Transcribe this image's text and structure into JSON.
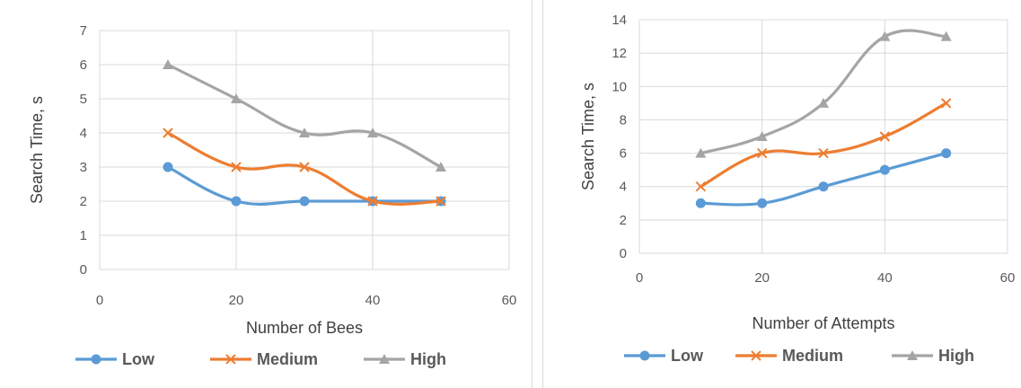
{
  "chart_data": [
    {
      "type": "line",
      "title": "",
      "xlabel": "Number of Bees",
      "ylabel": "Search Time, s",
      "xlim": [
        0,
        60
      ],
      "ylim": [
        0,
        7
      ],
      "xticks": [
        0,
        20,
        40,
        60
      ],
      "yticks": [
        0,
        1,
        2,
        3,
        4,
        5,
        6,
        7
      ],
      "grid": true,
      "smooth": true,
      "legend": "bottom",
      "x": [
        10,
        20,
        30,
        40,
        50
      ],
      "series": [
        {
          "name": "Low",
          "values": [
            3,
            2,
            2,
            2,
            2
          ],
          "color": "#5b9bd5",
          "marker": "circle"
        },
        {
          "name": "Medium",
          "values": [
            4,
            3,
            3,
            2,
            2
          ],
          "color": "#ed7d31",
          "marker": "x"
        },
        {
          "name": "High",
          "values": [
            6,
            5,
            4,
            4,
            3
          ],
          "color": "#a5a5a5",
          "marker": "triangle"
        }
      ]
    },
    {
      "type": "line",
      "title": "",
      "xlabel": "Number of Attempts",
      "ylabel": "Search Time, s",
      "xlim": [
        0,
        60
      ],
      "ylim": [
        0,
        14
      ],
      "xticks": [
        0,
        20,
        40,
        60
      ],
      "yticks": [
        0,
        2,
        4,
        6,
        8,
        10,
        12,
        14
      ],
      "grid": true,
      "smooth": true,
      "legend": "bottom",
      "x": [
        10,
        20,
        30,
        40,
        50
      ],
      "series": [
        {
          "name": "Low",
          "values": [
            3,
            3,
            4,
            5,
            6
          ],
          "color": "#5b9bd5",
          "marker": "circle"
        },
        {
          "name": "Medium",
          "values": [
            4,
            6,
            6,
            7,
            9
          ],
          "color": "#ed7d31",
          "marker": "x"
        },
        {
          "name": "High",
          "values": [
            6,
            7,
            9,
            13,
            13
          ],
          "color": "#a5a5a5",
          "marker": "triangle"
        }
      ]
    }
  ]
}
